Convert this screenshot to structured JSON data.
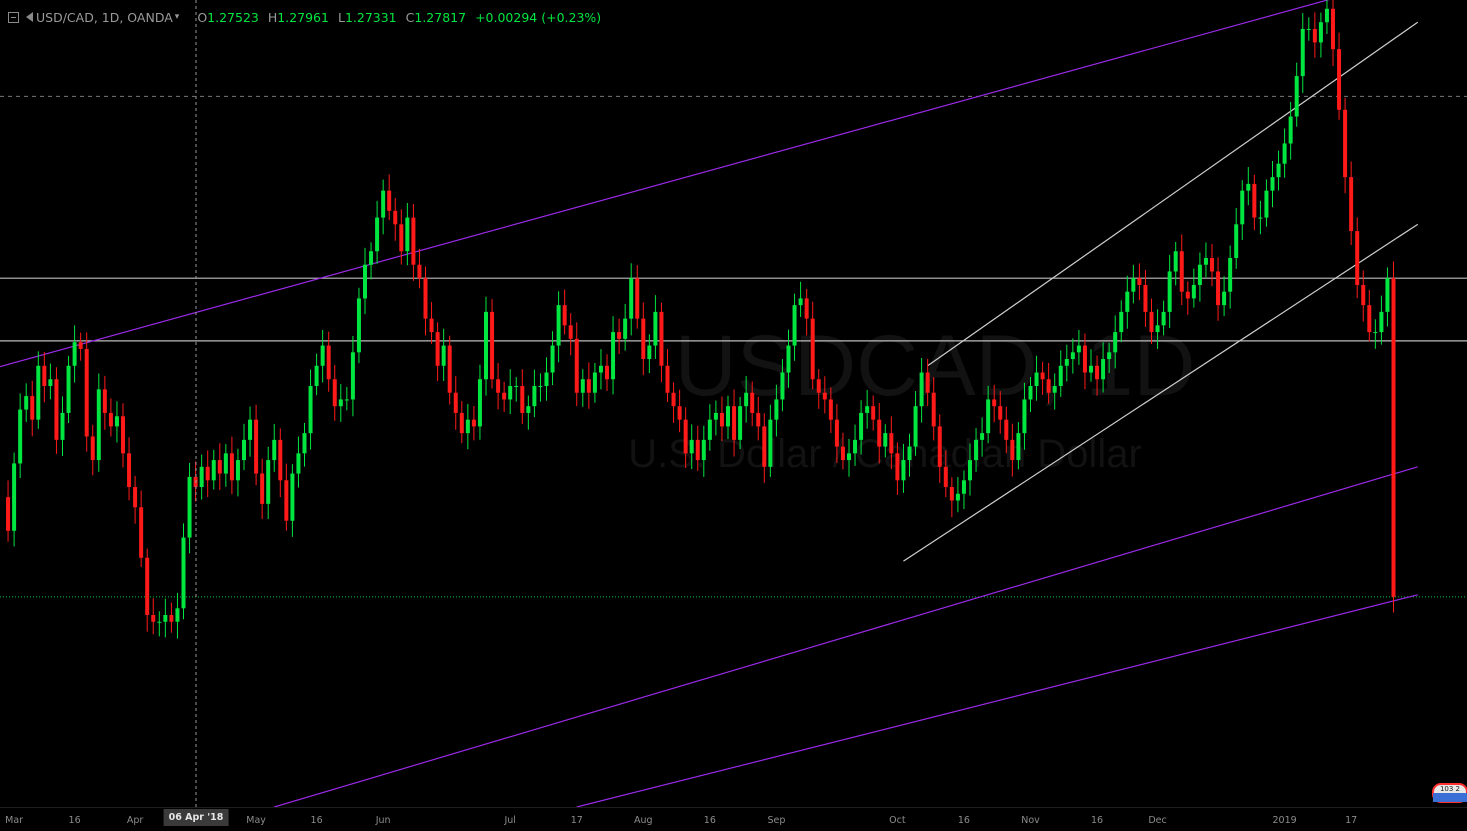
{
  "legend": {
    "symbol": "USD/CAD, 1D, OANDA",
    "o_label": "O",
    "o_value": "1.27523",
    "h_label": "H",
    "h_value": "1.27961",
    "l_label": "L",
    "l_value": "1.27331",
    "c_label": "C",
    "c_value": "1.27817",
    "change": "+0.00294 (+0.23%)"
  },
  "watermark": {
    "symbol": "USDCAD, 1D",
    "description": "U.S. Dollar / Canadian Dollar"
  },
  "crosshair": {
    "date_label": "06 Apr '18"
  },
  "badge": {
    "text": "103 2"
  },
  "colors": {
    "background": "#000000",
    "up_candle": "#00e640",
    "down_candle": "#ff1a1a",
    "trend_channel": "#9a2ae6",
    "rising_channel": "#cfcfcf",
    "horizontal_level": "#bdbdbd",
    "last_price_line": "#00c840"
  },
  "chart_data": {
    "type": "candlestick",
    "symbol": "USD/CAD",
    "interval": "1D",
    "source": "OANDA",
    "ylim": [
      1.247,
      1.3668
    ],
    "x_ticks": [
      {
        "label": "Mar",
        "index": 2
      },
      {
        "label": "16",
        "index": 12
      },
      {
        "label": "Apr",
        "index": 22
      },
      {
        "label": "May",
        "index": 42
      },
      {
        "label": "16",
        "index": 52
      },
      {
        "label": "Jun",
        "index": 63
      },
      {
        "label": "Jul",
        "index": 84
      },
      {
        "label": "17",
        "index": 95
      },
      {
        "label": "Aug",
        "index": 106
      },
      {
        "label": "16",
        "index": 117
      },
      {
        "label": "Sep",
        "index": 128
      },
      {
        "label": "Oct",
        "index": 148
      },
      {
        "label": "16",
        "index": 159
      },
      {
        "label": "Nov",
        "index": 170
      },
      {
        "label": "16",
        "index": 181
      },
      {
        "label": "Dec",
        "index": 191
      },
      {
        "label": "2019",
        "index": 212
      },
      {
        "label": "17",
        "index": 223
      }
    ],
    "closes": [
      1.293,
      1.288,
      1.298,
      1.306,
      1.308,
      1.3045,
      1.3125,
      1.3095,
      1.3105,
      1.3015,
      1.3055,
      1.3125,
      1.316,
      1.315,
      1.302,
      1.2985,
      1.309,
      1.3055,
      1.3035,
      1.305,
      1.2995,
      1.2945,
      1.2915,
      1.284,
      1.2755,
      1.2745,
      1.2745,
      1.2755,
      1.2745,
      1.2765,
      1.287,
      1.296,
      1.2945,
      1.2975,
      1.2955,
      1.2985,
      1.2965,
      1.2995,
      1.2955,
      1.2985,
      1.3015,
      1.3045,
      1.2965,
      1.292,
      1.2985,
      1.3015,
      1.2955,
      1.2895,
      1.2965,
      1.2995,
      1.3025,
      1.3095,
      1.3125,
      1.3155,
      1.3105,
      1.3065,
      1.3075,
      1.3075,
      1.3145,
      1.3225,
      1.3275,
      1.3295,
      1.3345,
      1.3385,
      1.3355,
      1.3335,
      1.3295,
      1.3345,
      1.3275,
      1.3255,
      1.3195,
      1.3175,
      1.3125,
      1.3155,
      1.3085,
      1.3055,
      1.3025,
      1.3045,
      1.3035,
      1.3105,
      1.3205,
      1.3105,
      1.3085,
      1.3075,
      1.3095,
      1.3095,
      1.3055,
      1.3065,
      1.3095,
      1.3095,
      1.3115,
      1.3155,
      1.3215,
      1.3185,
      1.3165,
      1.3085,
      1.3105,
      1.3085,
      1.3115,
      1.3125,
      1.3105,
      1.3175,
      1.3165,
      1.3195,
      1.3255,
      1.3195,
      1.3135,
      1.3155,
      1.3205,
      1.3125,
      1.3085,
      1.3065,
      1.3045,
      1.2995,
      1.3015,
      1.2985,
      1.3015,
      1.3045,
      1.3055,
      1.3035,
      1.3065,
      1.3015,
      1.3065,
      1.3085,
      1.3055,
      1.3035,
      1.2975,
      1.3045,
      1.3075,
      1.3115,
      1.3155,
      1.3215,
      1.3225,
      1.3195,
      1.3105,
      1.3085,
      1.3075,
      1.3045,
      1.3005,
      1.2985,
      1.2995,
      1.3015,
      1.3055,
      1.3065,
      1.3045,
      1.3005,
      1.3025,
      1.2995,
      1.2955,
      1.2985,
      1.3005,
      1.3065,
      1.3115,
      1.3085,
      1.3035,
      1.2975,
      1.2945,
      1.2925,
      1.2935,
      1.2955,
      1.2985,
      1.3015,
      1.3025,
      1.3075,
      1.3065,
      1.3045,
      1.3015,
      1.2985,
      1.3025,
      1.3075,
      1.3095,
      1.3115,
      1.3105,
      1.3085,
      1.3095,
      1.3125,
      1.3135,
      1.3145,
      1.3155,
      1.3115,
      1.3125,
      1.3105,
      1.3135,
      1.3145,
      1.3175,
      1.3205,
      1.3235,
      1.3255,
      1.3245,
      1.3205,
      1.3175,
      1.3185,
      1.3205,
      1.3265,
      1.3295,
      1.3235,
      1.3225,
      1.3245,
      1.3275,
      1.3285,
      1.3265,
      1.3215,
      1.3235,
      1.3285,
      1.3335,
      1.3385,
      1.3395,
      1.3345,
      1.3345,
      1.3385,
      1.3405,
      1.3425,
      1.3455,
      1.3495,
      1.3555,
      1.3625,
      1.3625,
      1.3605,
      1.3635,
      1.3655,
      1.3595,
      1.3505,
      1.3405,
      1.3325,
      1.3245,
      1.3215,
      1.3175,
      1.3175,
      1.3205,
      1.3255,
      1.2782
    ],
    "horizontal_levels": [
      1.3255,
      1.3162
    ],
    "dashed_levels": [
      1.3525
    ],
    "last_price": 1.2782,
    "trend_lines": [
      {
        "name": "outer-upper-channel",
        "from": {
          "index": -20,
          "value": 1.3075
        },
        "to": {
          "index": 234,
          "value": 1.3705
        }
      },
      {
        "name": "outer-lower-channel",
        "from": {
          "index": 45,
          "value": 1.247
        },
        "to": {
          "index": 234,
          "value": 1.2975
        }
      },
      {
        "name": "outer-bottom-channel",
        "from": {
          "index": 95,
          "value": 1.247
        },
        "to": {
          "index": 234,
          "value": 1.2785
        }
      },
      {
        "name": "rising-channel-lower",
        "from": {
          "index": 149,
          "value": 1.2835
        },
        "to": {
          "index": 234,
          "value": 1.3335
        }
      },
      {
        "name": "rising-channel-upper",
        "from": {
          "index": 153,
          "value": 1.3125
        },
        "to": {
          "index": 234,
          "value": 1.3635
        }
      }
    ]
  }
}
